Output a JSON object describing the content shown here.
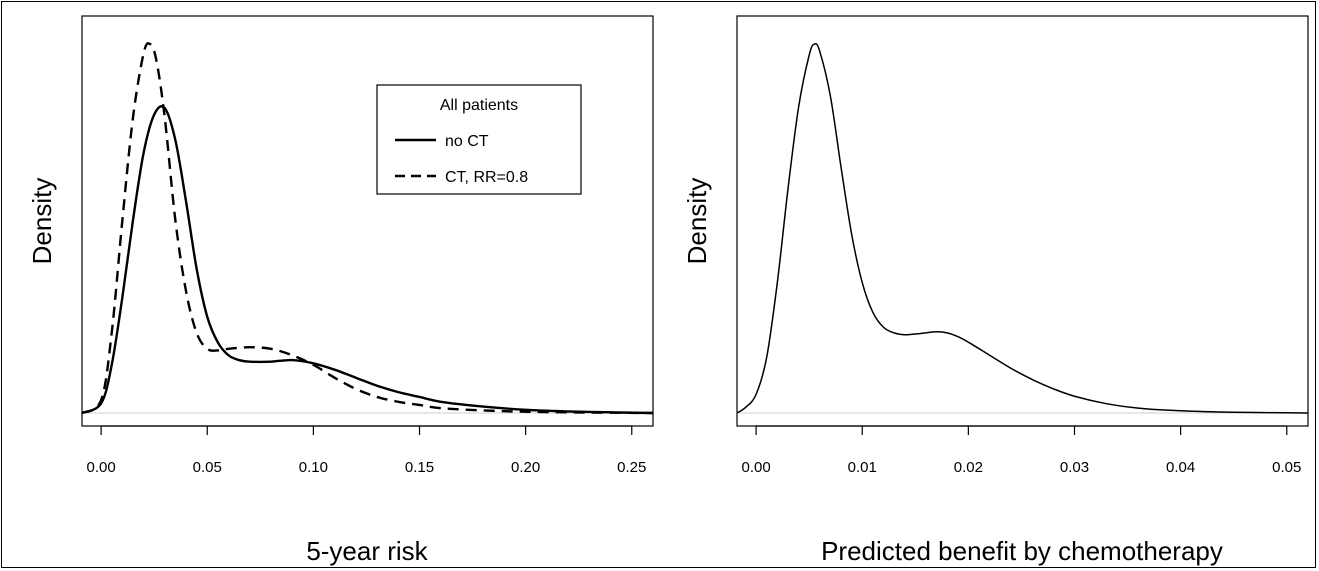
{
  "chart_data": [
    {
      "type": "line",
      "title": "",
      "xlabel": "5-year risk",
      "ylabel": "Density",
      "xlim": [
        -0.009,
        0.26
      ],
      "xticks": [
        "0.00",
        "0.05",
        "0.10",
        "0.15",
        "0.20",
        "0.25"
      ],
      "y_ticks_shown": false,
      "grid": false,
      "legend": {
        "title": "All patients",
        "placement": "top-right",
        "entries": [
          {
            "label": "no CT",
            "style": "solid"
          },
          {
            "label": "CT, RR=0.8",
            "style": "dashed"
          }
        ]
      },
      "series": [
        {
          "name": "no CT",
          "style": "solid",
          "x": [
            -0.009,
            0.0,
            0.005,
            0.01,
            0.015,
            0.02,
            0.025,
            0.03,
            0.035,
            0.04,
            0.045,
            0.05,
            0.055,
            0.06,
            0.065,
            0.07,
            0.08,
            0.09,
            0.1,
            0.11,
            0.12,
            0.13,
            0.14,
            0.15,
            0.16,
            0.18,
            0.2,
            0.22,
            0.24,
            0.26
          ],
          "y": [
            0.0,
            0.03,
            0.15,
            0.36,
            0.6,
            0.81,
            0.93,
            0.95,
            0.85,
            0.66,
            0.45,
            0.3,
            0.22,
            0.18,
            0.165,
            0.16,
            0.16,
            0.165,
            0.155,
            0.135,
            0.11,
            0.085,
            0.065,
            0.05,
            0.035,
            0.02,
            0.01,
            0.005,
            0.002,
            0.0
          ]
        },
        {
          "name": "CT, RR=0.8",
          "style": "dashed",
          "x": [
            -0.009,
            0.0,
            0.005,
            0.01,
            0.015,
            0.02,
            0.023,
            0.026,
            0.03,
            0.035,
            0.04,
            0.045,
            0.05,
            0.055,
            0.06,
            0.07,
            0.08,
            0.09,
            0.1,
            0.11,
            0.12,
            0.13,
            0.14,
            0.15,
            0.16,
            0.18,
            0.2,
            0.22,
            0.24,
            0.26
          ],
          "y": [
            0.0,
            0.04,
            0.25,
            0.6,
            0.92,
            1.12,
            1.15,
            1.1,
            0.92,
            0.6,
            0.38,
            0.25,
            0.2,
            0.195,
            0.2,
            0.205,
            0.2,
            0.18,
            0.15,
            0.11,
            0.075,
            0.05,
            0.035,
            0.025,
            0.015,
            0.008,
            0.004,
            0.002,
            0.001,
            0.0
          ]
        }
      ]
    },
    {
      "type": "line",
      "title": "",
      "xlabel": "Predicted benefit by chemotherapy",
      "ylabel": "Density",
      "xlim": [
        -0.0018,
        0.052
      ],
      "xticks": [
        "0.00",
        "0.01",
        "0.02",
        "0.03",
        "0.04",
        "0.05"
      ],
      "y_ticks_shown": false,
      "grid": false,
      "series": [
        {
          "style": "solid",
          "x": [
            -0.0018,
            -0.001,
            0.0,
            0.001,
            0.002,
            0.003,
            0.004,
            0.005,
            0.0055,
            0.006,
            0.007,
            0.008,
            0.009,
            0.01,
            0.011,
            0.012,
            0.013,
            0.014,
            0.015,
            0.016,
            0.017,
            0.018,
            0.019,
            0.02,
            0.022,
            0.024,
            0.026,
            0.028,
            0.03,
            0.033,
            0.036,
            0.04,
            0.045,
            0.052
          ],
          "y": [
            0.0,
            0.015,
            0.05,
            0.15,
            0.35,
            0.6,
            0.82,
            0.96,
            0.99,
            0.97,
            0.85,
            0.66,
            0.48,
            0.35,
            0.27,
            0.23,
            0.215,
            0.21,
            0.212,
            0.215,
            0.218,
            0.215,
            0.205,
            0.19,
            0.155,
            0.12,
            0.09,
            0.065,
            0.045,
            0.025,
            0.013,
            0.006,
            0.002,
            0.0
          ]
        }
      ]
    }
  ]
}
